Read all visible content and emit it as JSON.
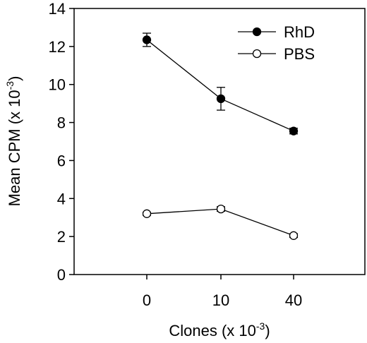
{
  "chart_data": {
    "type": "line",
    "xlabel": "Clones (x 10",
    "xlabel_exp": "-3",
    "xlabel_close": ")",
    "ylabel": "Mean CPM (x 10",
    "ylabel_exp": "-3",
    "ylabel_close": ")",
    "categories": [
      "0",
      "10",
      "40"
    ],
    "yticks": [
      "0",
      "2",
      "4",
      "6",
      "8",
      "10",
      "12",
      "14"
    ],
    "ylim": [
      0,
      14
    ],
    "grid": false,
    "legend_position": "top-right",
    "series": [
      {
        "name": "RhD",
        "marker": "filled-circle",
        "values": [
          12.35,
          9.25,
          7.55
        ],
        "errors": [
          0.35,
          0.6,
          0.15
        ]
      },
      {
        "name": "PBS",
        "marker": "open-circle",
        "values": [
          3.2,
          3.45,
          2.05
        ],
        "errors": [
          0.08,
          0.12,
          0.1
        ]
      }
    ],
    "colors": {
      "line": "#000000",
      "filled_marker": "#000000",
      "open_marker_fill": "#ffffff"
    }
  }
}
